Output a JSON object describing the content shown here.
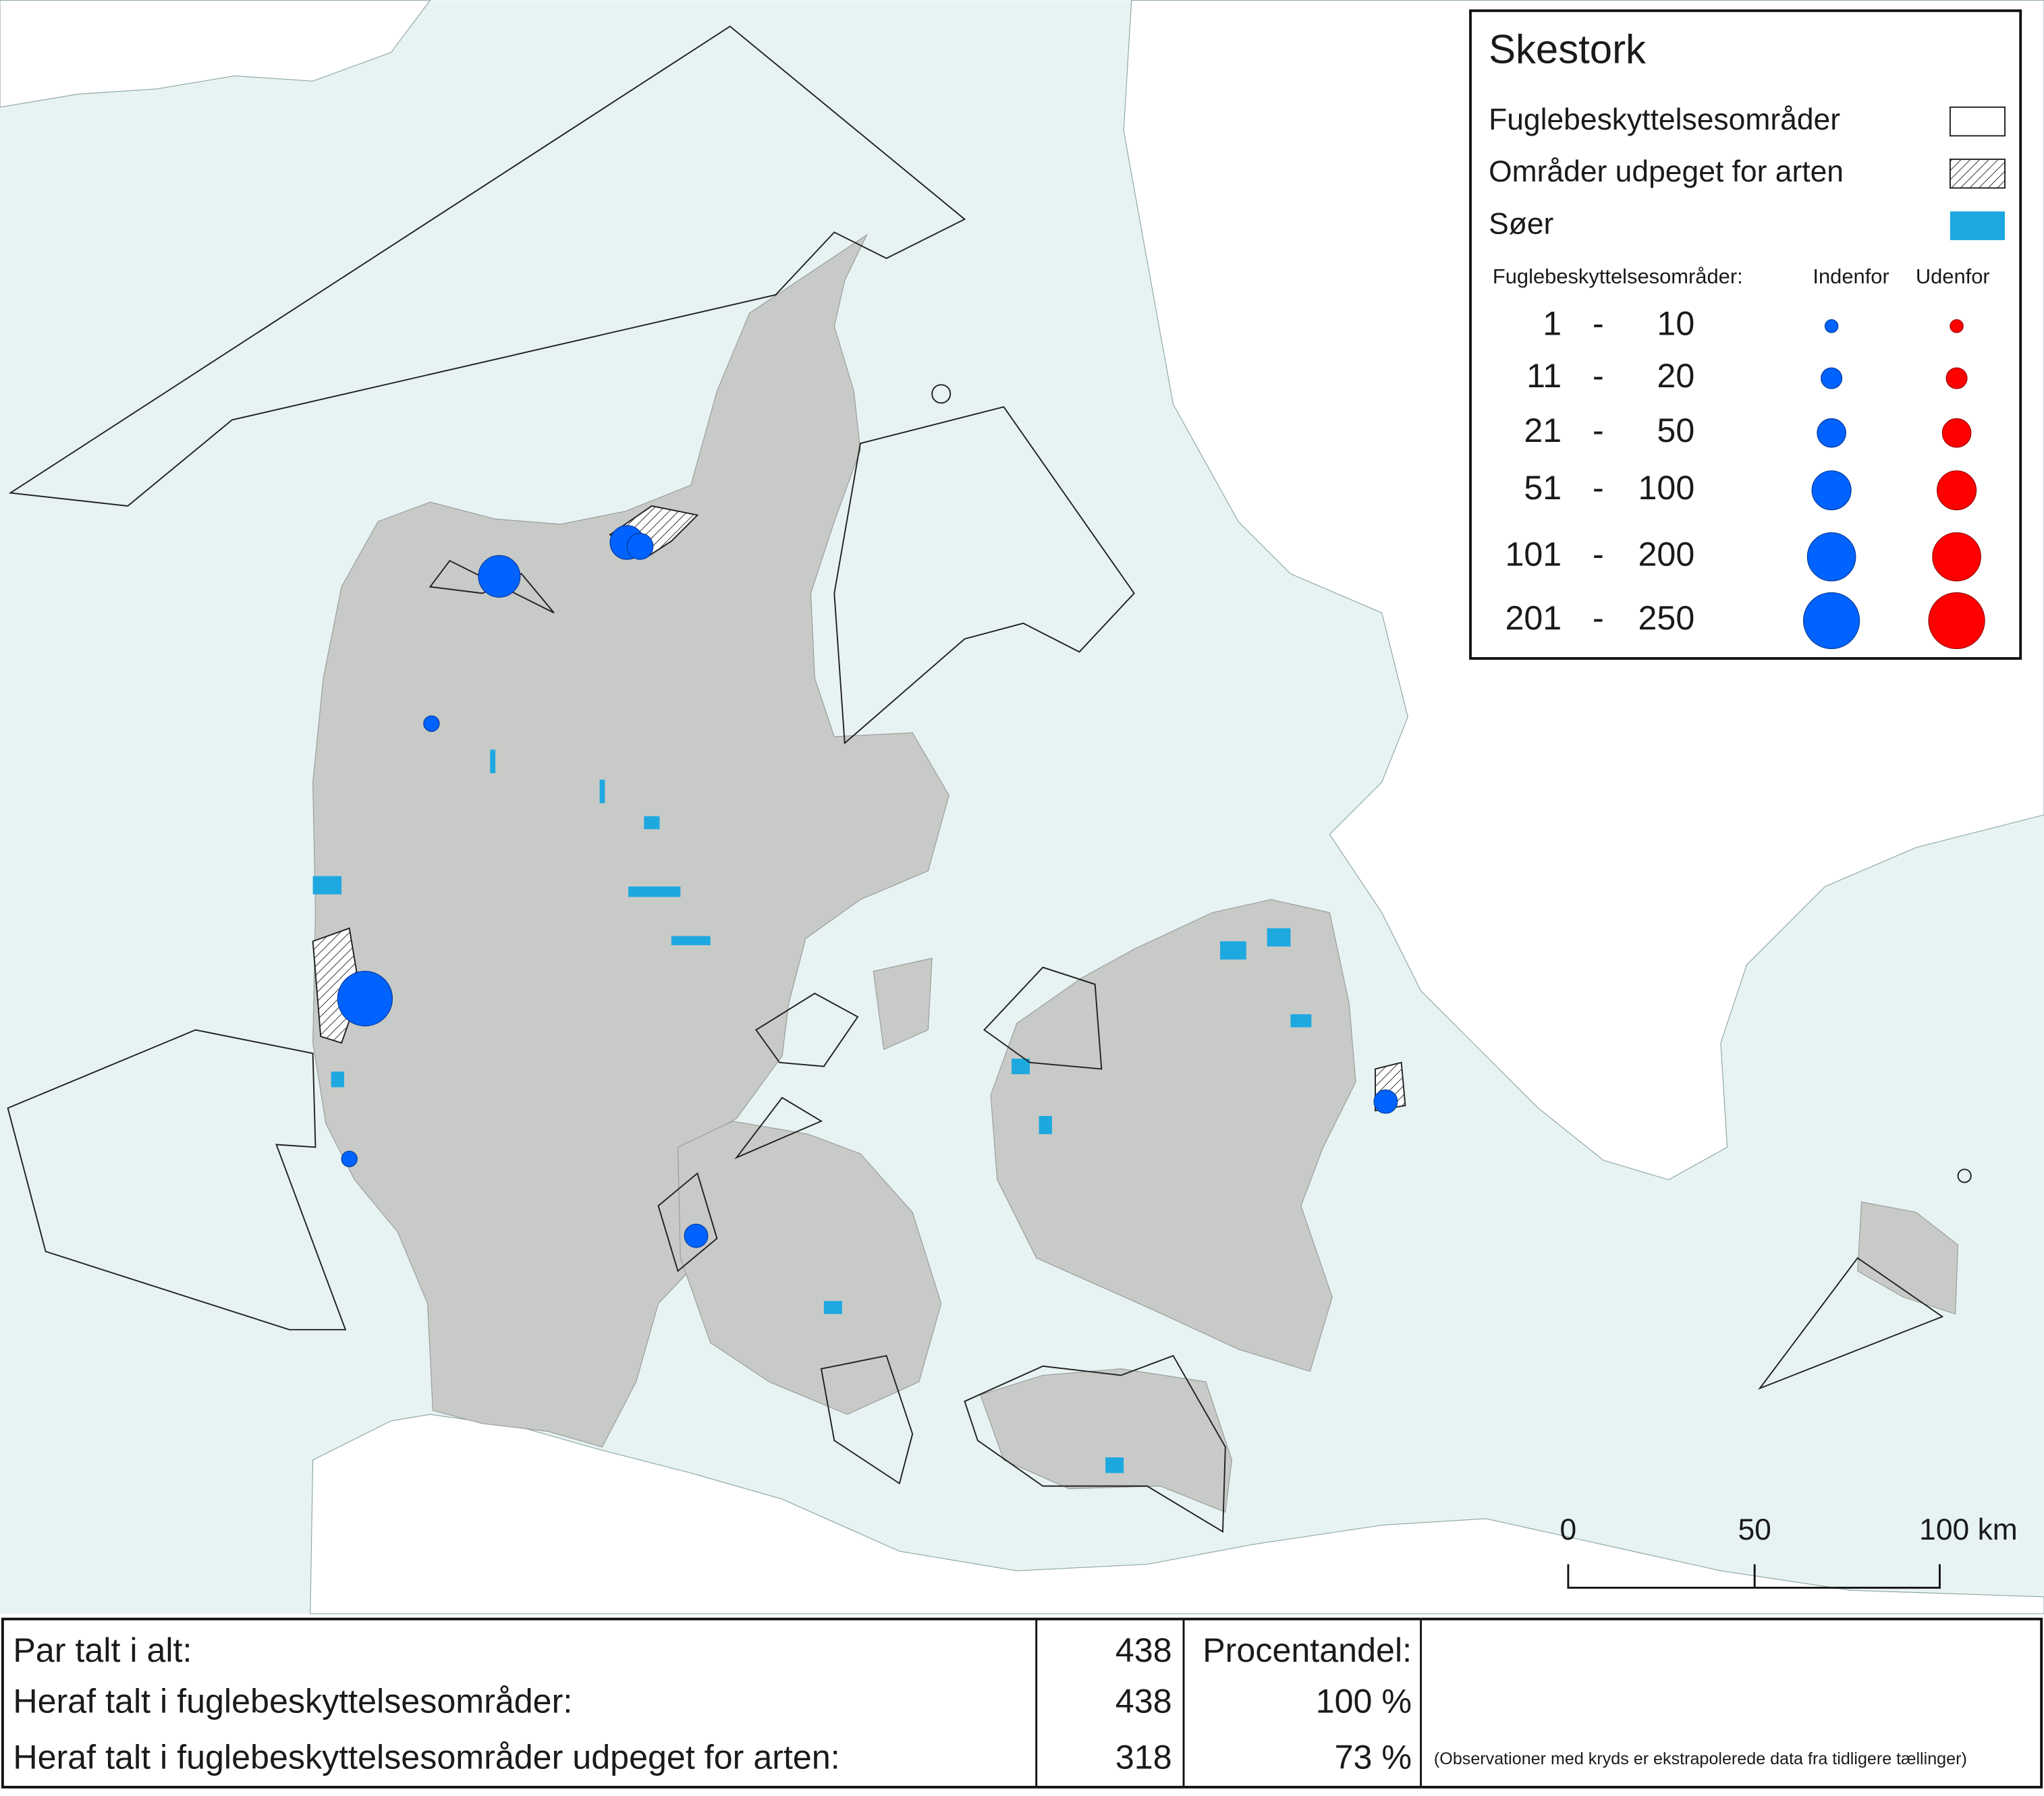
{
  "legend": {
    "title": "Skestork",
    "items": [
      "Fuglebeskyttelsesområder",
      "Områder udpeget for arten",
      "Søer"
    ],
    "size_header": [
      "Fuglebeskyttelsesområder:",
      "Indenfor",
      "Udenfor"
    ],
    "size_classes": [
      [
        "1",
        "-",
        "10"
      ],
      [
        "11",
        "-",
        "20"
      ],
      [
        "21",
        "-",
        "50"
      ],
      [
        "51",
        "-",
        "100"
      ],
      [
        "101",
        "-",
        "200"
      ],
      [
        "201",
        "-",
        "250"
      ]
    ]
  },
  "scale_bar": [
    "0",
    "50",
    "100 km"
  ],
  "table": {
    "rows": [
      [
        "Par talt i alt:",
        "438",
        "Procentandel:"
      ],
      [
        "Heraf talt i fuglebeskyttelsesområder:",
        "438",
        "100 %"
      ],
      [
        "Heraf talt i fuglebeskyttelsesområder udpeget for arten:",
        "318",
        "73 %"
      ]
    ],
    "note": "(Observationer med kryds er ekstrapolerede data fra tidligere tællinger)"
  }
}
